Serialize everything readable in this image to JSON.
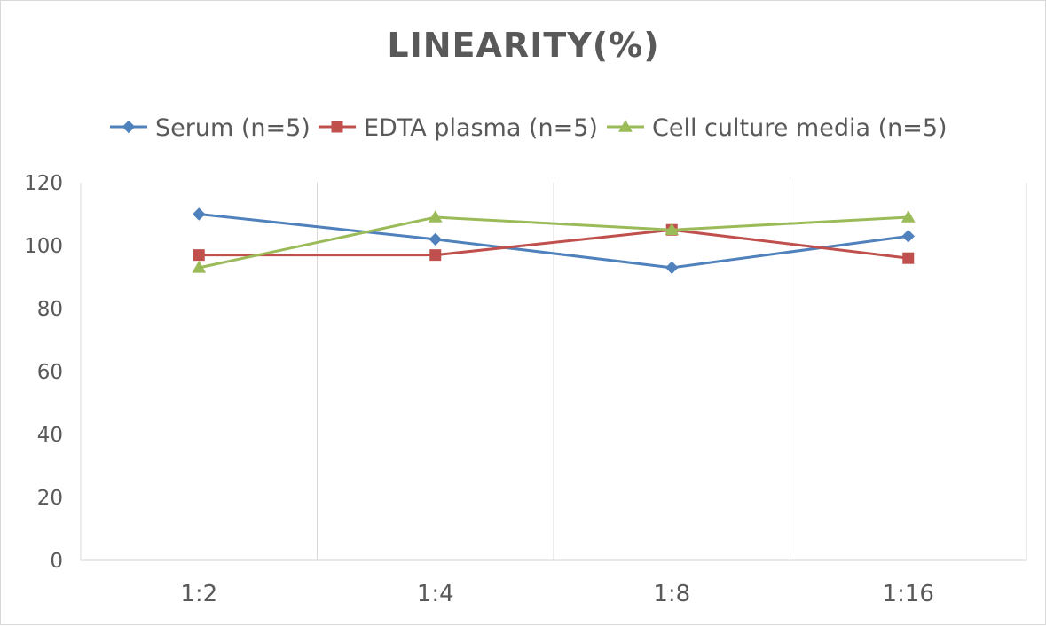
{
  "chart_data": {
    "type": "line",
    "title": "LINEARITY(%)",
    "categories": [
      "1:2",
      "1:4",
      "1:8",
      "1:16"
    ],
    "series": [
      {
        "name": "Serum (n=5)",
        "values": [
          110,
          102,
          93,
          103
        ],
        "color": "#4f81bd",
        "marker": "diamond"
      },
      {
        "name": "EDTA plasma (n=5)",
        "values": [
          97,
          97,
          105,
          96
        ],
        "color": "#c0504d",
        "marker": "square"
      },
      {
        "name": "Cell culture media (n=5)",
        "values": [
          93,
          109,
          105,
          109
        ],
        "color": "#9bbb59",
        "marker": "triangle"
      }
    ],
    "ylim": [
      0,
      120
    ],
    "yticks": [
      0,
      20,
      40,
      60,
      80,
      100,
      120
    ],
    "grid": true,
    "legend_position": "top"
  }
}
